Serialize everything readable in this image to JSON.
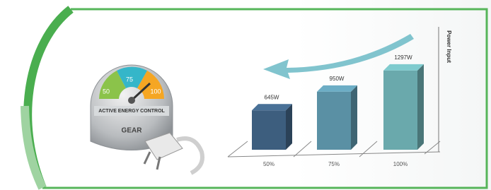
{
  "chart_data": {
    "type": "bar",
    "y_label": "Power Input",
    "categories": [
      "50%",
      "75%",
      "100%"
    ],
    "values": [
      645,
      950,
      1297
    ],
    "value_labels": [
      "645W",
      "950W",
      "1297W"
    ],
    "colors": [
      "#3d5e7e",
      "#5a90a4",
      "#6aa9ac"
    ],
    "ylim": [
      0,
      1400
    ]
  },
  "gauge": {
    "labels": [
      "50",
      "75",
      "100"
    ],
    "band": "ACTIVE ENERGY CONTROL",
    "name": "GEAR"
  }
}
